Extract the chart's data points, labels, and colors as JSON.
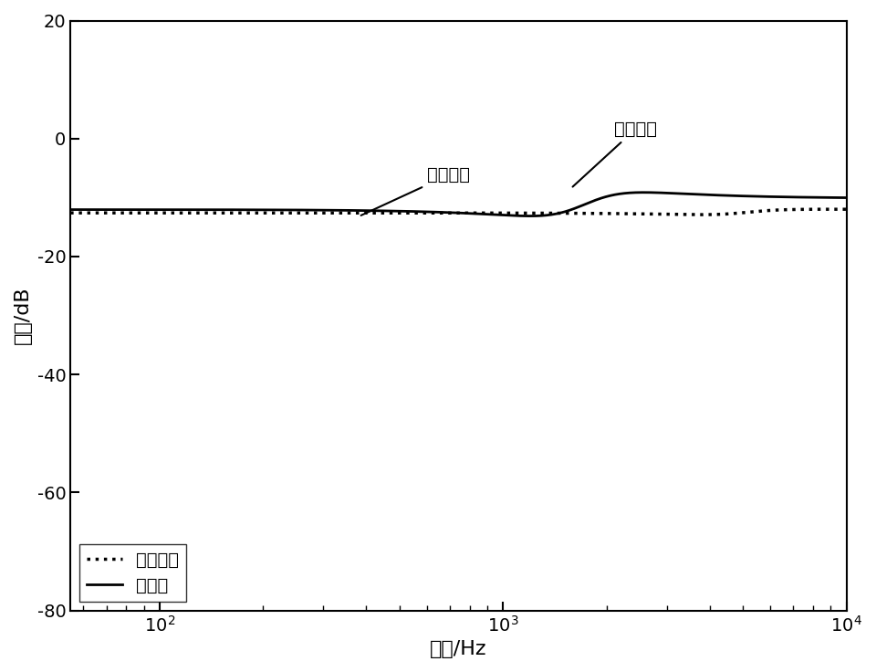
{
  "title": "",
  "xlabel": "频率/Hz",
  "ylabel": "幅値/dB",
  "xlim": [
    50,
    10000
  ],
  "ylim": [
    -80,
    20
  ],
  "yticks": [
    -80,
    -60,
    -40,
    -20,
    0,
    20
  ],
  "legend_entries": [
    "现有技术",
    "本发明"
  ],
  "annotation_positive": "正谐振峰",
  "annotation_negative": "负谐振峰",
  "background_color": "#ffffff",
  "line_color": "#000000",
  "fontsize_labels": 16,
  "fontsize_ticks": 14,
  "fontsize_legend": 14,
  "fontsize_annotation": 14,
  "f_start": 50,
  "f_end": 10000,
  "L1": 0.00135,
  "L2": 0.00045,
  "Lc": 0.00012,
  "C": 9e-06,
  "Rd": 8.0,
  "Cd": 1.8e-05
}
